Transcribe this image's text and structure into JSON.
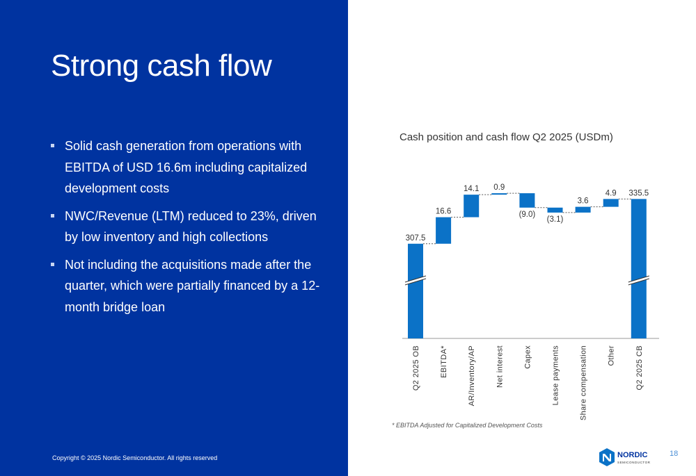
{
  "slide": {
    "title": "Strong cash flow",
    "bullets": [
      "Solid cash generation from operations with EBITDA of USD 16.6m including capitalized development costs",
      "NWC/Revenue (LTM) reduced to 23%, driven by low inventory and high collections",
      "Not including the acquisitions made after the quarter, which were partially financed by a 12-month bridge loan"
    ],
    "copyright": "Copyright © 2025 Nordic Semiconductor. All rights reserved",
    "footnote": "* EBITDA Adjusted for Capitalized Development Costs",
    "page_number": "18",
    "logo": {
      "brand": "NORDIC",
      "sub": "SEMICONDUCTOR",
      "icon": "nordic-logo-icon"
    }
  },
  "colors": {
    "panel": "#0033A0",
    "bar": "#0B72C7",
    "text": "#333333"
  },
  "chart_data": {
    "type": "waterfall",
    "title": "Cash position and cash flow Q2 2025 (USDm)",
    "categories": [
      "Q2 2025 OB",
      "EBITDA*",
      "AR/Inventory/AP",
      "Net interest",
      "Capex",
      "Lease payments",
      "Share compensation",
      "Other",
      "Q2 2025 CB"
    ],
    "values": [
      307.5,
      16.6,
      14.1,
      0.9,
      -9.0,
      -3.1,
      3.6,
      4.9,
      335.5
    ],
    "labels": [
      "307.5",
      "16.6",
      "14.1",
      "0.9",
      "(9.0)",
      "(3.1)",
      "3.6",
      "4.9",
      "335.5"
    ],
    "kinds": [
      "total",
      "delta",
      "delta",
      "delta",
      "delta",
      "delta",
      "delta",
      "delta",
      "total"
    ],
    "axis_break": true
  }
}
